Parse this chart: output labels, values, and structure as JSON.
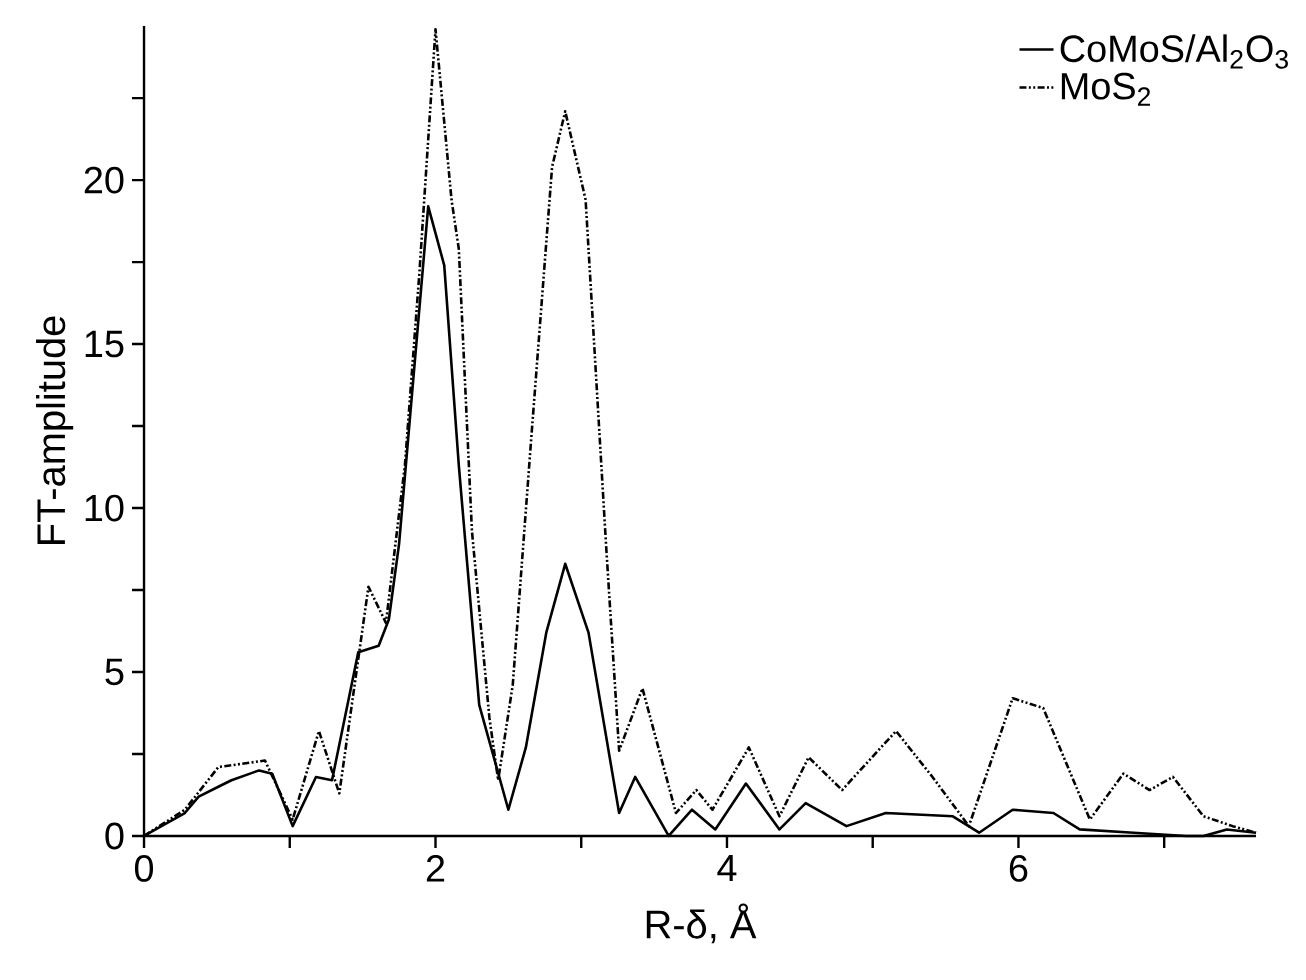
{
  "chart_data": {
    "type": "line",
    "xlabel": "R-δ, Å",
    "ylabel": "FT-amplitude",
    "xlim": [
      0,
      7.63
    ],
    "ylim": [
      0,
      24.7
    ],
    "xticks": [
      0,
      {
        "value": 1,
        "label": null
      },
      2,
      {
        "value": 3,
        "label": null
      },
      4,
      {
        "value": 5,
        "label": null
      },
      6,
      {
        "value": 7,
        "label": null
      }
    ],
    "yticks": [
      0,
      {
        "value": 2.5,
        "label": null
      },
      5,
      {
        "value": 7.5,
        "label": null
      },
      10,
      {
        "value": 12.5,
        "label": null
      },
      15,
      {
        "value": 17.5,
        "label": null
      },
      20,
      {
        "value": 22.5,
        "label": null
      }
    ],
    "legend": "top right",
    "marker": "none",
    "series": [
      {
        "name": "CoMoS/Al$_{2}$O$_{3}$",
        "color": "#000000",
        "line_style": "solid",
        "x": [
          0,
          0.28,
          0.375,
          0.51,
          0.6,
          0.79,
          0.88,
          1.02,
          1.18,
          1.29,
          1.47,
          1.61,
          1.68,
          1.75,
          1.95,
          2.06,
          2.16,
          2.3,
          2.5,
          2.62,
          2.76,
          2.89,
          3.05,
          3.26,
          3.37,
          3.6,
          3.76,
          3.92,
          4.13,
          4.36,
          4.54,
          4.82,
          5.09,
          5.55,
          5.73,
          5.96,
          6.24,
          6.42,
          6.79,
          7.15,
          7.27,
          7.43,
          7.63
        ],
        "values": [
          0,
          0.7,
          1.2,
          1.5,
          1.7,
          2.0,
          1.9,
          0.3,
          1.8,
          1.7,
          5.6,
          5.8,
          6.6,
          8.9,
          19.2,
          17.4,
          11.3,
          4.0,
          0.8,
          2.7,
          6.2,
          8.3,
          6.2,
          0.7,
          1.8,
          0,
          0.8,
          0.2,
          1.6,
          0.2,
          1.0,
          0.3,
          0.7,
          0.6,
          0.1,
          0.8,
          0.7,
          0.2,
          0.1,
          0,
          0,
          0.2,
          0.1
        ]
      },
      {
        "name": "MoS$_{2}$",
        "color": "#000000",
        "line_style": "dashed",
        "x": [
          0,
          0.28,
          0.51,
          0.83,
          1.02,
          1.2,
          1.34,
          1.54,
          1.66,
          1.79,
          1.89,
          2.0,
          2.11,
          2.16,
          2.25,
          2.37,
          2.43,
          2.53,
          2.66,
          2.8,
          2.89,
          3.03,
          3.17,
          3.26,
          3.42,
          3.65,
          3.79,
          3.9,
          4.15,
          4.36,
          4.56,
          4.79,
          5.16,
          5.41,
          5.66,
          5.96,
          6.17,
          6.49,
          6.72,
          6.9,
          7.06,
          7.27,
          7.47,
          7.63
        ],
        "values": [
          0,
          0.8,
          2.1,
          2.3,
          0.5,
          3.2,
          1.3,
          7.6,
          6.5,
          11.3,
          17.2,
          24.6,
          19.4,
          17.9,
          9.3,
          3.6,
          1.7,
          4.6,
          12.3,
          20.4,
          22.1,
          19.4,
          8.9,
          2.6,
          4.5,
          0.7,
          1.4,
          0.8,
          2.7,
          0.6,
          2.4,
          1.4,
          3.2,
          1.8,
          0.3,
          4.2,
          3.9,
          0.5,
          1.9,
          1.4,
          1.8,
          0.6,
          0.3,
          0.1
        ]
      }
    ]
  }
}
